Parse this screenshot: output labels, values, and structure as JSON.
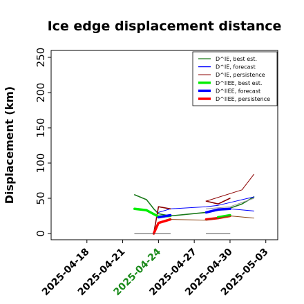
{
  "chart_data": {
    "type": "line",
    "title": "Ice edge displacement distance",
    "ylabel": "Displacement (km)",
    "xlabel": "",
    "ylim": [
      0,
      260
    ],
    "yticks": [
      0,
      50,
      100,
      150,
      200,
      250
    ],
    "xlim": [
      "2025-04-15",
      "2025-05-04"
    ],
    "xticks": [
      {
        "date": "2025-04-18",
        "color": "#000000"
      },
      {
        "date": "2025-04-21",
        "color": "#000000"
      },
      {
        "date": "2025-04-24",
        "color": "#1a8a1a"
      },
      {
        "date": "2025-04-27",
        "color": "#000000"
      },
      {
        "date": "2025-04-30",
        "color": "#000000"
      },
      {
        "date": "2025-05-03",
        "color": "#000000"
      }
    ],
    "grid": false,
    "legend_position": "top-right",
    "legend": [
      {
        "label": "D^IE, best est.",
        "color": "#1a7a1a",
        "width": 1.2
      },
      {
        "label": "D^IE, forecast",
        "color": "#0000ff",
        "width": 1.2
      },
      {
        "label": "D^IE, persistence",
        "color": "#8b0000",
        "width": 1.2
      },
      {
        "label": "D^IIEE, best est.",
        "color": "#00ee00",
        "width": 3.5
      },
      {
        "label": "D^IIEE, forecast",
        "color": "#0000ff",
        "width": 3.5
      },
      {
        "label": "D^IIEE, persistence",
        "color": "#ff0000",
        "width": 3.5
      }
    ],
    "series": [
      {
        "color": "#1a7a1a",
        "width": 1.6,
        "points": [
          [
            "2025-04-22",
            55
          ],
          [
            "2025-04-23",
            48
          ],
          [
            "2025-04-23.6",
            35
          ],
          [
            "2025-04-24",
            28
          ],
          [
            "2025-04-25",
            25
          ],
          [
            "2025-04-28",
            30
          ],
          [
            "2025-04-30",
            36
          ],
          [
            "2025-05-01",
            42
          ],
          [
            "2025-05-02",
            52
          ]
        ]
      },
      {
        "color": "#0000ff",
        "width": 1.0,
        "points": [
          [
            "2025-04-24",
            30
          ],
          [
            "2025-04-25",
            35
          ],
          [
            "2025-04-28",
            38
          ],
          [
            "2025-04-29",
            40
          ],
          [
            "2025-05-02",
            52
          ]
        ]
      },
      {
        "color": "#8b0000",
        "width": 1.0,
        "points": [
          [
            "2025-04-28",
            46
          ],
          [
            "2025-05-01",
            62
          ],
          [
            "2025-05-02",
            84
          ]
        ]
      },
      {
        "color": "#8b0000",
        "width": 1.6,
        "points": [
          [
            "2025-04-23.6",
            0
          ],
          [
            "2025-04-24",
            38
          ],
          [
            "2025-04-25",
            35
          ]
        ]
      },
      {
        "color": "#8b0000",
        "width": 1.6,
        "points": [
          [
            "2025-04-28",
            46
          ],
          [
            "2025-04-29",
            42
          ],
          [
            "2025-04-30",
            50
          ]
        ]
      },
      {
        "color": "#00ee00",
        "width": 3.5,
        "points": [
          [
            "2025-04-22",
            35
          ],
          [
            "2025-04-23",
            33
          ],
          [
            "2025-04-24",
            24
          ],
          [
            "2025-04-25",
            25
          ]
        ]
      },
      {
        "color": "#0000ff",
        "width": 3.5,
        "points": [
          [
            "2025-04-24",
            23
          ],
          [
            "2025-04-25",
            26
          ]
        ]
      },
      {
        "color": "#0000ff",
        "width": 3.5,
        "points": [
          [
            "2025-04-28",
            30
          ],
          [
            "2025-04-29",
            34
          ],
          [
            "2025-04-30",
            35
          ]
        ]
      },
      {
        "color": "#0000ff",
        "width": 1.0,
        "points": [
          [
            "2025-04-30",
            35
          ],
          [
            "2025-05-02",
            32
          ]
        ]
      },
      {
        "color": "#ff0000",
        "width": 3.5,
        "points": [
          [
            "2025-04-23.6",
            0
          ],
          [
            "2025-04-24",
            15
          ],
          [
            "2025-04-25",
            20
          ]
        ]
      },
      {
        "color": "#ff0000",
        "width": 3.5,
        "points": [
          [
            "2025-04-28",
            20
          ],
          [
            "2025-04-29",
            22
          ],
          [
            "2025-04-30",
            25
          ]
        ]
      },
      {
        "color": "#00ee00",
        "width": 3.5,
        "points": [
          [
            "2025-04-29",
            23
          ],
          [
            "2025-04-30",
            26
          ]
        ]
      },
      {
        "color": "#8b4513",
        "width": 1.0,
        "points": [
          [
            "2025-04-25",
            20
          ],
          [
            "2025-04-28",
            19
          ],
          [
            "2025-04-30",
            25
          ],
          [
            "2025-05-02",
            22
          ]
        ]
      },
      {
        "color": "#999999",
        "width": 1.0,
        "points": [
          [
            "2025-04-28",
            35
          ],
          [
            "2025-04-30",
            38
          ],
          [
            "2025-05-02",
            50
          ]
        ]
      },
      {
        "color": "#555555",
        "width": 1.0,
        "points": [
          [
            "2025-04-22",
            0
          ],
          [
            "2025-04-25",
            0
          ]
        ]
      },
      {
        "color": "#555555",
        "width": 1.0,
        "points": [
          [
            "2025-04-28",
            0
          ],
          [
            "2025-04-30",
            0
          ]
        ]
      }
    ]
  }
}
